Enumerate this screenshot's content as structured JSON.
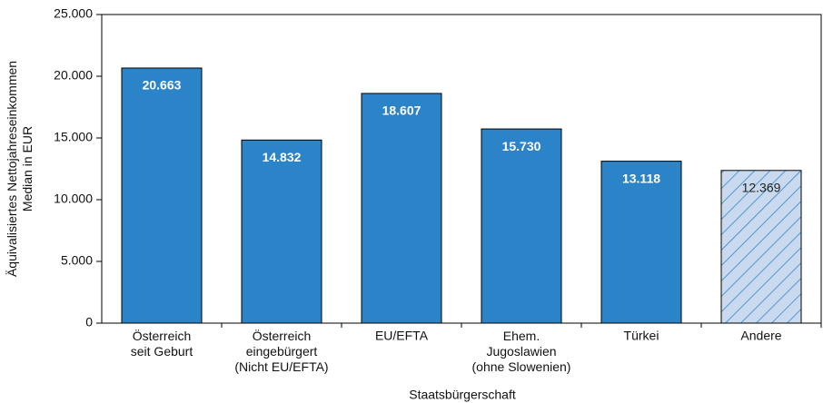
{
  "chart_data": {
    "type": "bar",
    "xlabel": "Staatsbürgerschaft",
    "ylabel": "Äquivalisiertes Nettojahreseinkommen\nMedian in EUR",
    "categories": [
      "Österreich\nseit Geburt",
      "Österreich\neingebürgert\n(Nicht EU/EFTA)",
      "EU/EFTA",
      "Ehem.\nJugoslawien\n(ohne Slowenien)",
      "Türkei",
      "Andere"
    ],
    "values": [
      20663,
      14832,
      18607,
      15730,
      13118,
      12369
    ],
    "value_labels": [
      "20.663",
      "14.832",
      "18.607",
      "15.730",
      "13.118",
      "12.369"
    ],
    "color": "#2b84c8",
    "hatched": [
      false,
      false,
      false,
      false,
      false,
      true
    ],
    "hatch_color": "#c9d9ee",
    "ylim": [
      0,
      25000
    ],
    "yticks": [
      0,
      {
        "value": 5000,
        "label": "5.000"
      },
      {
        "value": 10000,
        "label": "10.000"
      },
      {
        "value": 15000,
        "label": "15.000"
      },
      {
        "value": 20000,
        "label": "20.000"
      },
      {
        "value": 25000,
        "label": "25.000"
      }
    ],
    "grid": false
  }
}
